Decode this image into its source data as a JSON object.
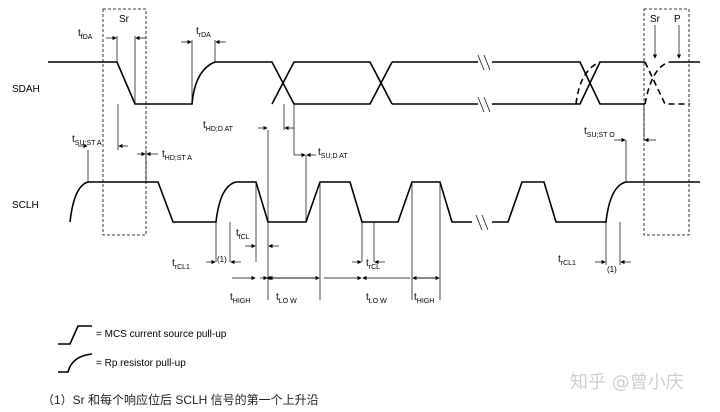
{
  "signals": {
    "sda": "SDAH",
    "scl": "SCLH"
  },
  "markers": {
    "sr_left": "Sr",
    "sr_right": "Sr",
    "p_right": "P",
    "note1a": "(1)",
    "note1b": "(1)"
  },
  "timing": {
    "tfDA": [
      "t",
      "fDA"
    ],
    "trDA": [
      "t",
      "rDA"
    ],
    "tSUSTA_left": [
      "t",
      "SU;ST  A"
    ],
    "tHDSTA": [
      "t",
      "HD;ST  A"
    ],
    "tHDDAT": [
      "t",
      "HD;D  AT"
    ],
    "tSUDAT": [
      "t",
      "SU;D  AT"
    ],
    "tSUSTO": [
      "t",
      "SU;ST   O"
    ],
    "tfCL": [
      "t",
      "fCL"
    ],
    "trCL1_left": [
      "t",
      "rCL1"
    ],
    "trCL": [
      "t",
      "rCL"
    ],
    "trCL1_right": [
      "t",
      "rCL1"
    ],
    "tHIGH_1": [
      "t",
      "HIGH"
    ],
    "tLOW_1": [
      "t",
      "LO W"
    ],
    "tLOW_2": [
      "t",
      "LO W"
    ],
    "tHIGH_2": [
      "t",
      "HIGH"
    ]
  },
  "legend": {
    "mcs": "= MCS current source pull-up",
    "rp": "= Rp resistor pull-up"
  },
  "footnote": "（1）Sr 和每个响应位后 SCLH 信号的第一个上升沿",
  "watermark": "知乎 @曾小庆"
}
